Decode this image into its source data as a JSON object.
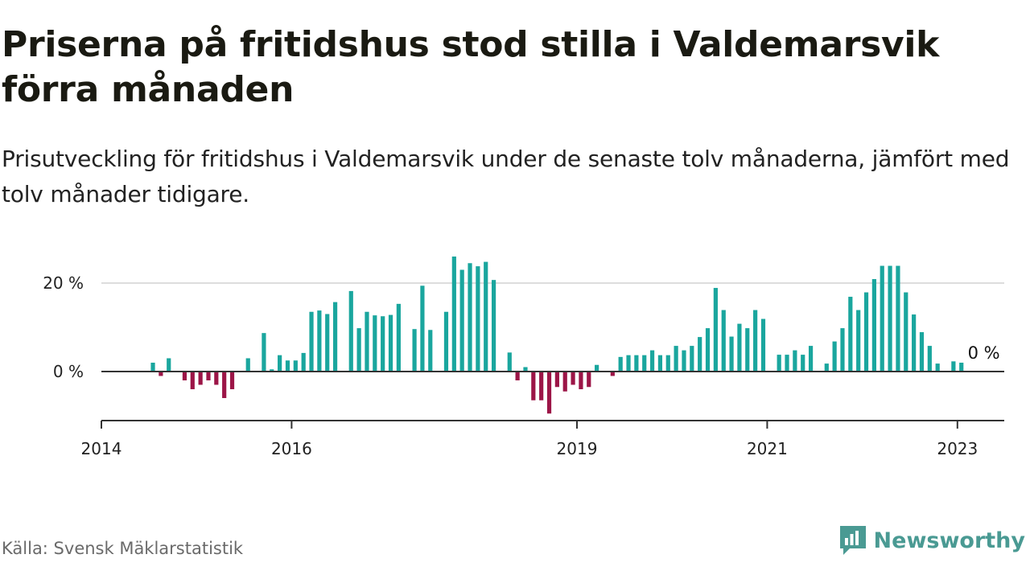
{
  "header": {
    "title": "Priserna på fritidshus stod stilla i Valdemarsvik förra månaden",
    "subtitle": "Prisutveckling för fritidshus i Valdemarsvik under de senaste tolv månaderna, jämfört med tolv månader tidigare."
  },
  "footer": {
    "source": "Källa: Svensk Mäklarstatistik",
    "brand": "Newsworthy"
  },
  "colors": {
    "positive": "#1aa69e",
    "negative": "#9c1547",
    "gridline": "#dddddd",
    "axis": "#333333",
    "brand": "#4a9a93"
  },
  "chart_data": {
    "type": "bar",
    "title": "Priserna på fritidshus stod stilla i Valdemarsvik förra månaden",
    "subtitle": "Prisutveckling för fritidshus i Valdemarsvik under de senaste tolv månaderna, jämfört med tolv månader tidigare.",
    "xlabel": "",
    "ylabel": "",
    "unit": "%",
    "x_ticks": [
      "2014",
      "2016",
      "2019",
      "2021",
      "2023"
    ],
    "y_ticks": [
      "0 %",
      "20 %"
    ],
    "grid": true,
    "ylim": [
      -11,
      27
    ],
    "last_value_label": "0 %",
    "x_start": "2014-01",
    "values": [
      null,
      null,
      null,
      null,
      null,
      null,
      2,
      -1,
      3,
      null,
      -2,
      -4,
      -3,
      -2,
      -3,
      -6,
      -4,
      null,
      3,
      null,
      8.7,
      0.5,
      3.7,
      2.5,
      2.5,
      4.2,
      13.5,
      13.8,
      13,
      15.7,
      null,
      18.2,
      9.8,
      13.5,
      12.7,
      12.5,
      12.8,
      15.3,
      null,
      9.6,
      19.4,
      9.4,
      null,
      13.5,
      26,
      23,
      24.5,
      23.8,
      24.8,
      20.7,
      null,
      4.3,
      -2,
      1,
      -6.5,
      -6.5,
      -9.5,
      -3.5,
      -4.5,
      -3,
      -4,
      -3.5,
      1.5,
      null,
      -1,
      3.3,
      3.7,
      3.7,
      3.7,
      4.8,
      3.7,
      3.7,
      5.8,
      4.8,
      5.8,
      7.8,
      9.8,
      18.9,
      13.9,
      7.9,
      10.8,
      9.8,
      13.9,
      11.9,
      null,
      3.8,
      3.8,
      4.8,
      3.8,
      5.8,
      null,
      1.8,
      6.8,
      9.8,
      16.9,
      13.9,
      17.9,
      20.9,
      23.9,
      23.9,
      23.9,
      17.9,
      12.9,
      8.9,
      5.8,
      1.8,
      null,
      2.3,
      2,
      0
    ]
  }
}
